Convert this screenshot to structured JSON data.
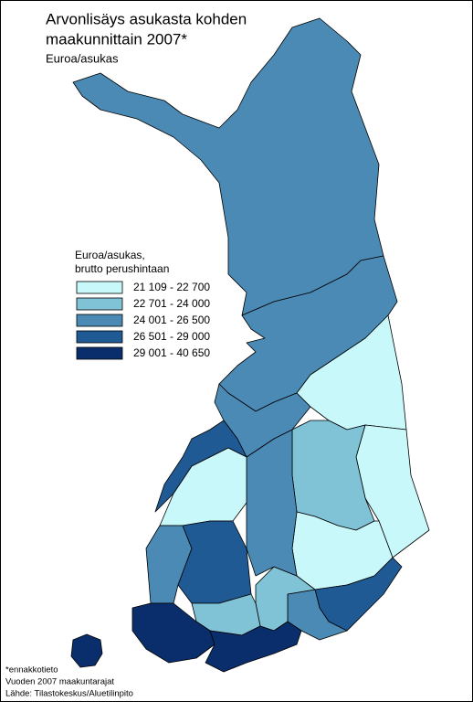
{
  "map": {
    "title": [
      "Arvonlisäys asukasta kohden",
      "maakunnittain 2007*"
    ],
    "subtitle": "Euroa/asukas",
    "legend": {
      "title": [
        "Euroa/asukas,",
        "brutto perushintaan"
      ],
      "items": [
        {
          "label": "21 109 - 22 700",
          "color": "#c9f8fb"
        },
        {
          "label": "22 701 - 24 000",
          "color": "#80c2d6"
        },
        {
          "label": "24 001 - 26 500",
          "color": "#4a8ab5"
        },
        {
          "label": "26 501 - 29 000",
          "color": "#1f5a94"
        },
        {
          "label": "29 001 - 40 650",
          "color": "#0a2e6b"
        }
      ]
    },
    "notes": [
      "*ennakkotieto",
      "Vuoden 2007 maakuntarajat",
      "Lähde: Tilastokeskus/Aluetilinpito"
    ]
  }
}
